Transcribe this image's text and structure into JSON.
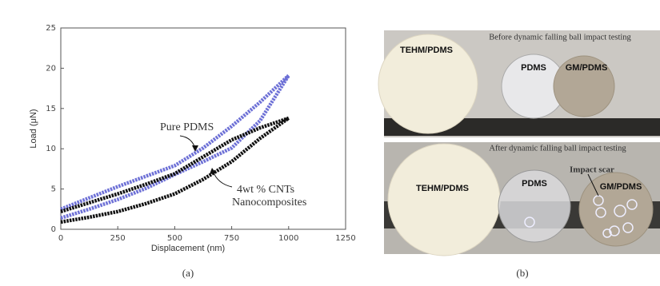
{
  "chart_data": {
    "type": "line",
    "x_label": "Displacement (nm)",
    "y_label": "Load (μN)",
    "x": [
      0,
      125,
      250,
      375,
      500,
      625,
      750,
      875,
      1000
    ],
    "series": [
      {
        "color": "#6d70d6",
        "values": [
          1.4,
          2.5,
          3.7,
          5.1,
          6.8,
          8.4,
          10.1,
          13.5,
          19.1
        ]
      },
      {
        "color": "#6d70d6",
        "values": [
          2.5,
          3.9,
          5.3,
          6.6,
          7.9,
          10.1,
          12.8,
          15.8,
          19.1
        ]
      },
      {
        "color": "#111111",
        "values": [
          0.9,
          1.5,
          2.2,
          3.2,
          4.4,
          6.2,
          8.4,
          11.3,
          13.8
        ]
      },
      {
        "color": "#111111",
        "values": [
          2.2,
          3.3,
          4.4,
          5.6,
          6.9,
          9.0,
          11.1,
          12.6,
          13.8
        ]
      }
    ],
    "annotations": [
      "Pure PDMS",
      "4wt % CNTs",
      "Nanocomposites"
    ],
    "xlim": [
      0,
      1250
    ],
    "xticks": [
      0,
      250,
      500,
      750,
      1000,
      1250
    ],
    "ylim": [
      0,
      25
    ],
    "yticks": [
      0,
      5,
      10,
      15,
      20,
      25
    ],
    "grid": false
  },
  "photo": {
    "top_title": "Before dynamic falling ball impact testing",
    "bottom_title": "After dynamic falling ball impact testing",
    "top_labels": [
      "TEHM/PDMS",
      "PDMS",
      "GM/PDMS"
    ],
    "bottom_labels": [
      "TEHM/PDMS",
      "PDMS",
      "GM/PDMS"
    ],
    "scar": "Impact scar"
  },
  "captions": [
    "(a)",
    "(b)"
  ]
}
